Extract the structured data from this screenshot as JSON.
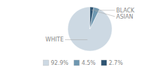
{
  "chart_data": {
    "type": "pie",
    "categories": [
      "WHITE",
      "ASIAN",
      "BLACK"
    ],
    "values": [
      92.9,
      4.5,
      2.7
    ],
    "value_labels": [
      "92.9%",
      "4.5%",
      "2.7%"
    ],
    "colors": [
      "#cdd9e3",
      "#6e97b0",
      "#2e5472"
    ],
    "legend": "bottom"
  }
}
